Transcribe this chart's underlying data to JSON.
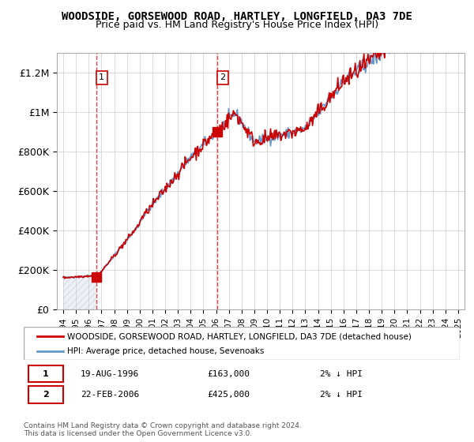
{
  "title": "WOODSIDE, GORSEWOOD ROAD, HARTLEY, LONGFIELD, DA3 7DE",
  "subtitle": "Price paid vs. HM Land Registry's House Price Index (HPI)",
  "legend_line1": "WOODSIDE, GORSEWOOD ROAD, HARTLEY, LONGFIELD, DA3 7DE (detached house)",
  "legend_line2": "HPI: Average price, detached house, Sevenoaks",
  "transaction1_date": "19-AUG-1996",
  "transaction1_price": 163000,
  "transaction1_hpi": "2% ↓ HPI",
  "transaction2_date": "22-FEB-2006",
  "transaction2_price": 425000,
  "transaction2_hpi": "2% ↓ HPI",
  "footer": "Contains HM Land Registry data © Crown copyright and database right 2024.\nThis data is licensed under the Open Government Licence v3.0.",
  "ylim_max": 1300000,
  "color_red": "#cc0000",
  "color_blue": "#6699cc",
  "color_hatch": "#c8d0e0",
  "color_grid": "#cccccc",
  "color_dashed": "#dd4444"
}
